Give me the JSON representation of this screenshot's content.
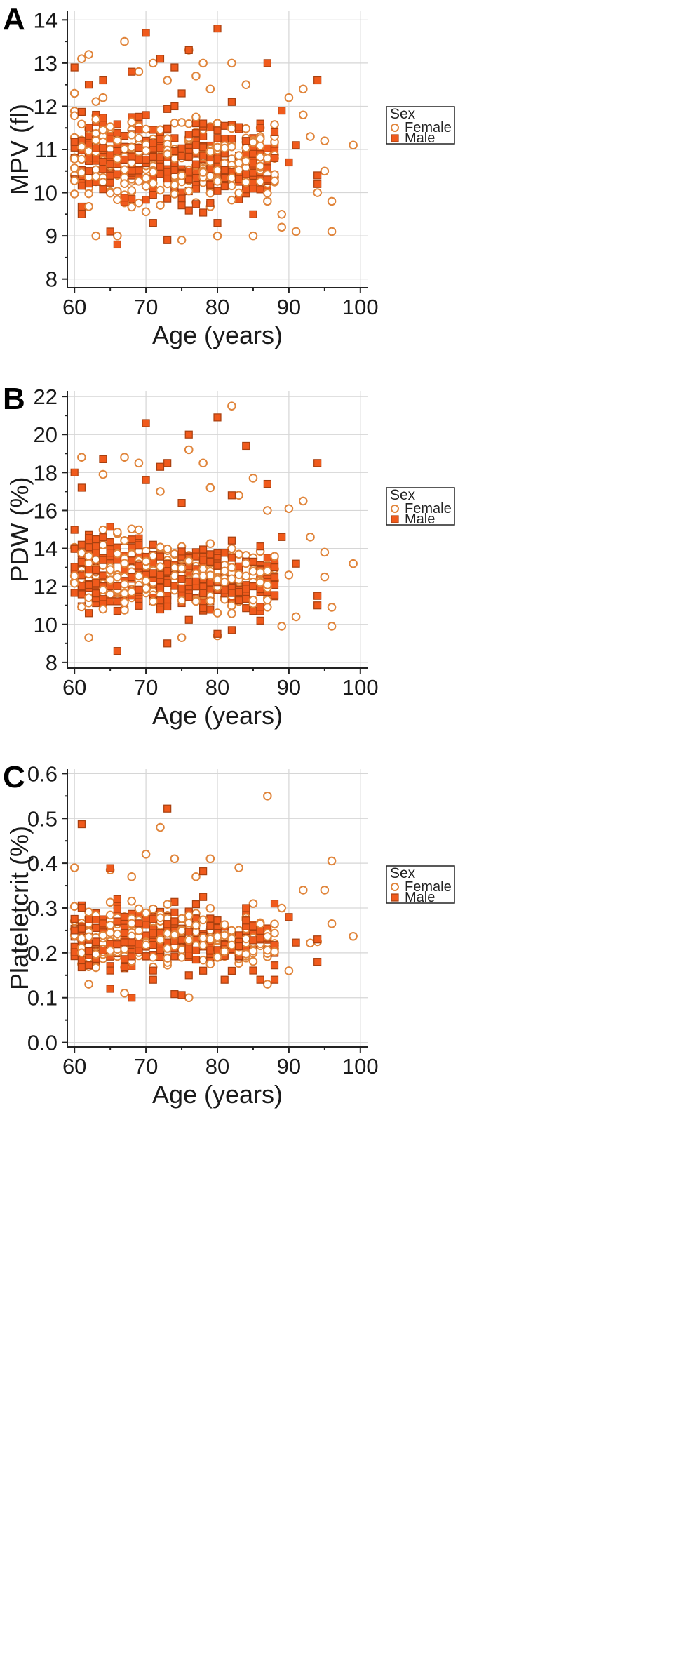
{
  "chart_data": [
    {
      "type": "scatter",
      "panel": "A",
      "xlabel": "Age (years)",
      "ylabel": "MPV (fl)",
      "xlim": [
        59,
        101
      ],
      "ylim": [
        7.8,
        14.2
      ],
      "xticks": [
        60,
        70,
        80,
        90,
        100
      ],
      "yticks": [
        8,
        9,
        10,
        11,
        12,
        13,
        14
      ],
      "grid": true,
      "legend": {
        "title": "Sex",
        "position": "right",
        "entries": [
          "Female",
          "Male"
        ]
      },
      "series": [
        {
          "name": "Female",
          "marker": "open-circle",
          "color": "#e0843a",
          "points": [
            [
              61,
              13.1
            ],
            [
              62,
              13.2
            ],
            [
              67,
              13.5
            ],
            [
              71,
              13.0
            ],
            [
              76,
              13.3
            ],
            [
              78,
              13.0
            ],
            [
              82,
              13.0
            ],
            [
              92,
              12.4
            ],
            [
              93,
              11.3
            ],
            [
              95,
              11.2
            ],
            [
              99,
              11.1
            ],
            [
              96,
              9.8
            ],
            [
              96,
              9.1
            ],
            [
              91,
              9.1
            ],
            [
              89,
              9.2
            ],
            [
              85,
              9.0
            ],
            [
              80,
              9.0
            ],
            [
              75,
              8.9
            ],
            [
              63,
              9.0
            ],
            [
              66,
              9.0
            ],
            [
              69,
              12.8
            ],
            [
              73,
              12.6
            ],
            [
              79,
              12.4
            ],
            [
              84,
              12.5
            ],
            [
              90,
              12.2
            ],
            [
              92,
              11.8
            ],
            [
              95,
              10.5
            ],
            [
              94,
              10.0
            ],
            [
              89,
              9.5
            ],
            [
              87,
              9.8
            ],
            [
              60,
              12.3
            ],
            [
              64,
              12.2
            ],
            [
              77,
              12.7
            ],
            [
              86,
              11.5
            ],
            [
              88,
              11.3
            ]
          ]
        },
        {
          "name": "Male",
          "marker": "filled-square",
          "color": "#f05a1c",
          "points": [
            [
              60,
              12.9
            ],
            [
              70,
              13.7
            ],
            [
              72,
              13.1
            ],
            [
              74,
              12.9
            ],
            [
              76,
              13.3
            ],
            [
              80,
              13.8
            ],
            [
              87,
              13.0
            ],
            [
              94,
              12.6
            ],
            [
              94,
              10.4
            ],
            [
              94,
              10.2
            ],
            [
              91,
              11.1
            ],
            [
              90,
              10.7
            ],
            [
              89,
              11.9
            ],
            [
              88,
              11.4
            ],
            [
              86,
              11.5
            ],
            [
              85,
              9.5
            ],
            [
              80,
              9.3
            ],
            [
              73,
              8.9
            ],
            [
              66,
              8.8
            ],
            [
              61,
              9.5
            ],
            [
              65,
              9.1
            ],
            [
              68,
              12.8
            ],
            [
              75,
              12.3
            ],
            [
              82,
              12.1
            ],
            [
              88,
              10.8
            ],
            [
              62,
              12.5
            ],
            [
              78,
              11.6
            ],
            [
              84,
              11.2
            ],
            [
              71,
              9.3
            ],
            [
              64,
              12.6
            ]
          ]
        }
      ],
      "density_ranges": [
        [
          [
            60,
            69
          ],
          [
            9.3,
            12.3
          ]
        ],
        [
          [
            69,
            80
          ],
          [
            9.3,
            12.2
          ]
        ],
        [
          [
            80,
            88
          ],
          [
            9.4,
            11.9
          ]
        ]
      ]
    },
    {
      "type": "scatter",
      "panel": "B",
      "xlabel": "Age (years)",
      "ylabel": "PDW (%)",
      "xlim": [
        59,
        101
      ],
      "ylim": [
        7.7,
        22.3
      ],
      "xticks": [
        60,
        70,
        80,
        90,
        100
      ],
      "yticks": [
        8,
        10,
        12,
        14,
        16,
        18,
        20,
        22
      ],
      "grid": true,
      "legend": {
        "title": "Sex",
        "position": "right",
        "entries": [
          "Female",
          "Male"
        ]
      },
      "series": [
        {
          "name": "Female",
          "marker": "open-circle",
          "color": "#e0843a",
          "points": [
            [
              82,
              21.5
            ],
            [
              76,
              19.2
            ],
            [
              78,
              18.5
            ],
            [
              67,
              18.8
            ],
            [
              61,
              18.8
            ],
            [
              69,
              18.5
            ],
            [
              85,
              17.7
            ],
            [
              79,
              17.2
            ],
            [
              90,
              16.1
            ],
            [
              92,
              16.5
            ],
            [
              93,
              14.6
            ],
            [
              95,
              13.8
            ],
            [
              99,
              13.2
            ],
            [
              95,
              12.5
            ],
            [
              96,
              10.9
            ],
            [
              96,
              9.9
            ],
            [
              91,
              10.4
            ],
            [
              89,
              9.9
            ],
            [
              80,
              9.4
            ],
            [
              75,
              9.3
            ],
            [
              62,
              9.3
            ],
            [
              64,
              17.9
            ],
            [
              72,
              17.0
            ],
            [
              83,
              16.8
            ],
            [
              87,
              16.0
            ],
            [
              90,
              12.6
            ]
          ]
        },
        {
          "name": "Male",
          "marker": "filled-square",
          "color": "#f05a1c",
          "points": [
            [
              70,
              20.6
            ],
            [
              80,
              20.9
            ],
            [
              76,
              20.0
            ],
            [
              84,
              19.4
            ],
            [
              94,
              18.5
            ],
            [
              60,
              18.0
            ],
            [
              64,
              18.7
            ],
            [
              72,
              18.3
            ],
            [
              73,
              18.5
            ],
            [
              87,
              17.4
            ],
            [
              70,
              17.6
            ],
            [
              82,
              16.8
            ],
            [
              94,
              11.5
            ],
            [
              94,
              11.0
            ],
            [
              91,
              13.2
            ],
            [
              89,
              14.6
            ],
            [
              88,
              13.0
            ],
            [
              86,
              10.2
            ],
            [
              80,
              9.5
            ],
            [
              73,
              9.0
            ],
            [
              66,
              8.6
            ],
            [
              61,
              17.2
            ],
            [
              75,
              16.4
            ],
            [
              82,
              9.7
            ]
          ]
        }
      ],
      "density_ranges": [
        [
          [
            60,
            69
          ],
          [
            10.0,
            15.5
          ]
        ],
        [
          [
            69,
            80
          ],
          [
            9.8,
            15.4
          ]
        ],
        [
          [
            80,
            88
          ],
          [
            10.0,
            14.6
          ]
        ]
      ]
    },
    {
      "type": "scatter",
      "panel": "C",
      "xlabel": "Age (years)",
      "ylabel": "Plateletcrit (%)",
      "xlim": [
        59,
        101
      ],
      "ylim": [
        -0.01,
        0.61
      ],
      "xticks": [
        60,
        70,
        80,
        90,
        100
      ],
      "yticks": [
        0.0,
        0.1,
        0.2,
        0.3,
        0.4,
        0.5,
        0.6
      ],
      "grid": true,
      "legend": {
        "title": "Sex",
        "position": "right",
        "entries": [
          "Female",
          "Male"
        ]
      },
      "series": [
        {
          "name": "Female",
          "marker": "open-circle",
          "color": "#e0843a",
          "points": [
            [
              87,
              0.55
            ],
            [
              72,
              0.48
            ],
            [
              70,
              0.42
            ],
            [
              74,
              0.41
            ],
            [
              79,
              0.41
            ],
            [
              96,
              0.405
            ],
            [
              83,
              0.39
            ],
            [
              60,
              0.39
            ],
            [
              65,
              0.385
            ],
            [
              92,
              0.34
            ],
            [
              95,
              0.34
            ],
            [
              99,
              0.237
            ],
            [
              96,
              0.265
            ],
            [
              94,
              0.225
            ],
            [
              93,
              0.222
            ],
            [
              90,
              0.16
            ],
            [
              87,
              0.13
            ],
            [
              76,
              0.1
            ],
            [
              67,
              0.11
            ],
            [
              62,
              0.13
            ],
            [
              68,
              0.37
            ],
            [
              77,
              0.37
            ],
            [
              85,
              0.31
            ],
            [
              89,
              0.3
            ]
          ]
        },
        {
          "name": "Male",
          "marker": "filled-square",
          "color": "#f05a1c",
          "points": [
            [
              61,
              0.487
            ],
            [
              73,
              0.522
            ],
            [
              65,
              0.389
            ],
            [
              78,
              0.382
            ],
            [
              74,
              0.108
            ],
            [
              75,
              0.106
            ],
            [
              68,
              0.1
            ],
            [
              65,
              0.12
            ],
            [
              94,
              0.23
            ],
            [
              94,
              0.18
            ],
            [
              91,
              0.223
            ],
            [
              90,
              0.28
            ],
            [
              88,
              0.31
            ],
            [
              88,
              0.14
            ],
            [
              86,
              0.14
            ],
            [
              82,
              0.16
            ],
            [
              81,
              0.14
            ],
            [
              60,
              0.25
            ],
            [
              66,
              0.32
            ],
            [
              76,
              0.15
            ],
            [
              84,
              0.3
            ],
            [
              71,
              0.14
            ]
          ]
        }
      ],
      "density_ranges": [
        [
          [
            60,
            69
          ],
          [
            0.14,
            0.33
          ]
        ],
        [
          [
            69,
            80
          ],
          [
            0.14,
            0.33
          ]
        ],
        [
          [
            80,
            88
          ],
          [
            0.15,
            0.3
          ]
        ]
      ]
    }
  ],
  "panels": [
    {
      "letter": "A",
      "ylabel": "MPV (fl)",
      "xlabel": "Age (years)",
      "legend_title": "Sex",
      "legend_female": "Female",
      "legend_male": "Male"
    },
    {
      "letter": "B",
      "ylabel": "PDW (%)",
      "xlabel": "Age (years)",
      "legend_title": "Sex",
      "legend_female": "Female",
      "legend_male": "Male"
    },
    {
      "letter": "C",
      "ylabel": "Plateletcrit (%)",
      "xlabel": "Age (years)",
      "legend_title": "Sex",
      "legend_female": "Female",
      "legend_male": "Male"
    }
  ],
  "colors": {
    "female_stroke": "#e0843a",
    "male_fill": "#f05a1c",
    "male_stroke": "#a8400f",
    "grid": "#d6d6d6"
  }
}
